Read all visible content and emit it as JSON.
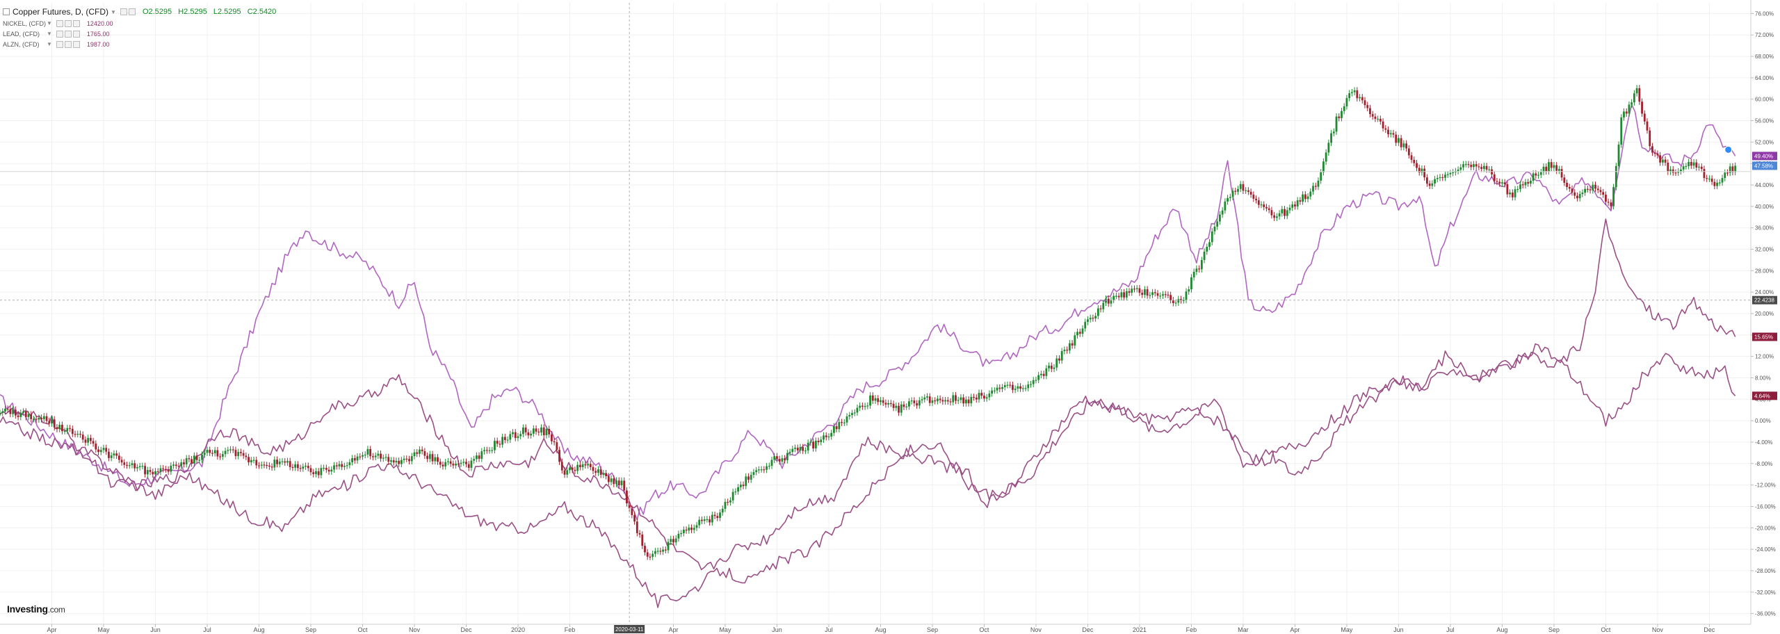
{
  "legend": {
    "main": {
      "name": "Copper Futures, D, (CFD)",
      "o": "O2.5295",
      "h": "H2.5295",
      "l": "L2.5295",
      "c": "C2.5420"
    },
    "subs": [
      {
        "name": "NICKEL, (CFD)",
        "value": "12420.00",
        "color": "#8c2f6a"
      },
      {
        "name": "LEAD, (CFD)",
        "value": "1765.00",
        "color": "#8c2f6a"
      },
      {
        "name": "ALZN, (CFD)",
        "value": "1987.00",
        "color": "#8c2f6a"
      }
    ]
  },
  "logo": {
    "brand": "Investing",
    "suffix": ".com"
  },
  "colors": {
    "purple_light": "#b066c0",
    "purple_dark": "#9a4f86",
    "candle_up": "#1d8a2f",
    "candle_down": "#a31f2d",
    "crosshair": "#b0b0b0"
  },
  "chart_data": {
    "type": "line",
    "title": "Copper Futures, D, (CFD)",
    "y_unit": "%",
    "ylim": [
      -38,
      78
    ],
    "y_ticks": [
      "76.00%",
      "72.00%",
      "68.00%",
      "64.00%",
      "60.00%",
      "56.00%",
      "52.00%",
      "48.00%",
      "44.00%",
      "40.00%",
      "36.00%",
      "32.00%",
      "28.00%",
      "24.00%",
      "20.00%",
      "16.00%",
      "12.00%",
      "8.00%",
      "4.00%",
      "0.00%",
      "-4.00%",
      "-8.00%",
      "-12.00%",
      "-16.00%",
      "-20.00%",
      "-24.00%",
      "-28.00%",
      "-32.00%",
      "-36.00%"
    ],
    "x_ticks": [
      {
        "label": "Apr",
        "x": 0.3
      },
      {
        "label": "May",
        "x": 1.3
      },
      {
        "label": "Jun",
        "x": 2.3
      },
      {
        "label": "Jul",
        "x": 3.3
      },
      {
        "label": "Aug",
        "x": 4.3
      },
      {
        "label": "Sep",
        "x": 5.3
      },
      {
        "label": "Oct",
        "x": 6.3
      },
      {
        "label": "Nov",
        "x": 7.3
      },
      {
        "label": "Dec",
        "x": 8.3
      },
      {
        "label": "2020",
        "x": 9.3
      },
      {
        "label": "Feb",
        "x": 10.3
      },
      {
        "label": "Apr",
        "x": 12.3
      },
      {
        "label": "May",
        "x": 13.3
      },
      {
        "label": "Jun",
        "x": 14.3
      },
      {
        "label": "Jul",
        "x": 15.3
      },
      {
        "label": "Aug",
        "x": 16.3
      },
      {
        "label": "Sep",
        "x": 17.3
      },
      {
        "label": "Oct",
        "x": 18.3
      },
      {
        "label": "Nov",
        "x": 19.3
      },
      {
        "label": "Dec",
        "x": 20.3
      },
      {
        "label": "2021",
        "x": 21.3
      },
      {
        "label": "Feb",
        "x": 22.3
      },
      {
        "label": "Mar",
        "x": 23.3
      },
      {
        "label": "Apr",
        "x": 24.3
      },
      {
        "label": "May",
        "x": 25.3
      },
      {
        "label": "Jun",
        "x": 26.3
      },
      {
        "label": "Jul",
        "x": 27.3
      },
      {
        "label": "Aug",
        "x": 28.3
      },
      {
        "label": "Sep",
        "x": 29.3
      },
      {
        "label": "Oct",
        "x": 30.3
      },
      {
        "label": "Nov",
        "x": 31.3
      },
      {
        "label": "Dec",
        "x": 32.3
      }
    ],
    "x_range": [
      -0.7,
      33.1
    ],
    "crosshair": {
      "x": 11.45,
      "y": 22.5,
      "x_label": "2020-03-11",
      "y_label": "22.4238"
    },
    "hline": {
      "y": 46.5
    },
    "price_tags": [
      {
        "label": "49.40%",
        "y": 49.4,
        "color": "#8e3aa6"
      },
      {
        "label": "47.58%",
        "y": 47.58,
        "color": "#4f86d6"
      },
      {
        "label": "15.65%",
        "y": 15.65,
        "color": "#8c1d3d"
      },
      {
        "label": "4.64%",
        "y": 4.64,
        "color": "#8c1d3d"
      }
    ],
    "series": [
      {
        "name": "NICKEL, (CFD)",
        "color": "#b066c0",
        "x": [
          -0.7,
          0.5,
          1.2,
          1.8,
          2.5,
          3.2,
          3.6,
          4.3,
          4.8,
          5.2,
          5.4,
          5.8,
          6.3,
          6.5,
          7.0,
          7.3,
          7.6,
          8.0,
          8.4,
          8.8,
          9.2,
          9.7,
          10.2,
          10.8,
          11.3,
          11.6,
          11.9,
          12.3,
          12.8,
          13.3,
          13.8,
          14.4,
          14.9,
          15.4,
          15.9,
          16.4,
          16.9,
          17.4,
          17.9,
          18.4,
          18.8,
          19.3,
          19.8,
          20.3,
          20.8,
          21.2,
          21.6,
          22.0,
          22.4,
          22.8,
          23.0,
          23.2,
          23.4,
          23.8,
          24.3,
          24.8,
          25.3,
          25.8,
          26.3,
          26.7,
          27.0,
          27.3,
          27.8,
          28.4,
          28.9,
          29.4,
          29.9,
          30.2,
          30.4,
          30.6,
          30.8,
          31.0,
          31.3,
          31.7,
          32.0,
          32.3,
          32.5,
          32.8
        ],
        "y": [
          4,
          -4,
          -8,
          -12,
          -10,
          -8,
          3,
          20,
          30,
          36,
          34,
          32,
          30,
          28,
          22,
          26,
          14,
          8,
          -2,
          4,
          6,
          2,
          -6,
          -8,
          -12,
          -18,
          -14,
          -12,
          -14,
          -8,
          -2,
          -8,
          -4,
          0,
          6,
          8,
          12,
          18,
          14,
          10,
          12,
          16,
          18,
          22,
          24,
          26,
          34,
          40,
          30,
          38,
          48,
          36,
          22,
          20,
          24,
          34,
          40,
          42,
          40,
          42,
          28,
          36,
          46,
          44,
          46,
          40,
          45,
          42,
          40,
          50,
          60,
          52,
          50,
          48,
          50,
          56,
          52,
          49.4
        ]
      },
      {
        "name": "LEAD, (CFD)",
        "color": "#9a4f86",
        "x": [
          -0.7,
          0.3,
          0.9,
          1.5,
          2.1,
          2.8,
          3.5,
          3.8,
          4.4,
          5.0,
          5.6,
          6.3,
          7.0,
          7.6,
          8.3,
          8.9,
          9.5,
          9.8,
          10.4,
          11.0,
          11.6,
          12.3,
          12.9,
          13.5,
          14.1,
          14.7,
          15.4,
          16.0,
          16.7,
          17.4,
          18.0,
          18.4,
          18.9,
          19.5,
          20.2,
          20.9,
          21.6,
          22.3,
          22.8,
          23.2,
          23.6,
          24.0,
          24.5,
          25.0,
          25.5,
          26.2,
          26.7,
          27.2,
          27.8,
          28.4,
          29.0,
          29.5,
          30.0,
          30.3,
          30.6,
          31.0,
          31.4,
          31.8,
          32.2,
          32.6,
          32.8
        ],
        "y": [
          2,
          0,
          -6,
          -12,
          -12,
          -10,
          -2,
          -2,
          -6,
          -4,
          2,
          4,
          8,
          0,
          -10,
          -8,
          -8,
          -4,
          -10,
          -12,
          -16,
          -24,
          -28,
          -24,
          -22,
          -16,
          -14,
          -4,
          -6,
          -4,
          -12,
          -14,
          -12,
          -4,
          4,
          2,
          0,
          2,
          0,
          -4,
          -8,
          -6,
          -4,
          0,
          4,
          8,
          6,
          12,
          8,
          10,
          14,
          10,
          4,
          0,
          2,
          8,
          12,
          10,
          8,
          10,
          4.64
        ]
      },
      {
        "name": "ALZN, (CFD)",
        "color": "#9a4f86",
        "x": [
          -0.7,
          0.3,
          1.0,
          1.6,
          2.3,
          2.9,
          3.5,
          4.1,
          4.8,
          5.4,
          6.0,
          6.6,
          7.2,
          7.8,
          8.4,
          9.0,
          9.6,
          10.2,
          10.8,
          11.4,
          12.0,
          12.6,
          13.2,
          13.8,
          14.4,
          15.0,
          15.6,
          16.2,
          16.8,
          17.4,
          18.0,
          18.3,
          18.6,
          19.2,
          19.8,
          20.4,
          21.0,
          21.6,
          22.2,
          22.8,
          23.3,
          23.8,
          24.3,
          24.8,
          25.3,
          25.8,
          26.3,
          26.8,
          27.3,
          27.8,
          28.3,
          28.8,
          29.3,
          29.8,
          30.1,
          30.3,
          30.5,
          30.8,
          31.2,
          31.6,
          32.0,
          32.4,
          32.8
        ],
        "y": [
          0,
          -4,
          -6,
          -10,
          -14,
          -10,
          -14,
          -18,
          -20,
          -14,
          -12,
          -8,
          -10,
          -14,
          -18,
          -20,
          -20,
          -16,
          -20,
          -26,
          -34,
          -32,
          -28,
          -30,
          -26,
          -24,
          -18,
          -12,
          -6,
          -8,
          -10,
          -16,
          -14,
          -10,
          -2,
          4,
          2,
          -2,
          0,
          4,
          -8,
          -6,
          -10,
          -6,
          0,
          4,
          8,
          6,
          10,
          8,
          10,
          12,
          10,
          14,
          24,
          38,
          30,
          24,
          20,
          18,
          22,
          18,
          15.65
        ]
      },
      {
        "name": "Copper Futures, D, (CFD)",
        "color": "#1d8a2f",
        "x": [
          -0.7,
          0.2,
          1.0,
          1.7,
          2.3,
          2.8,
          3.3,
          3.8,
          4.3,
          4.9,
          5.4,
          5.9,
          6.4,
          6.9,
          7.4,
          7.9,
          8.4,
          8.9,
          9.4,
          9.9,
          10.2,
          10.5,
          10.9,
          11.3,
          11.5,
          11.8,
          12.1,
          12.6,
          13.1,
          13.6,
          14.1,
          14.6,
          15.1,
          15.6,
          16.1,
          16.6,
          17.1,
          17.6,
          18.1,
          18.6,
          19.1,
          19.6,
          20.1,
          20.6,
          21.1,
          21.6,
          22.1,
          22.6,
          22.9,
          23.2,
          23.5,
          23.9,
          24.3,
          24.7,
          25.1,
          25.4,
          25.7,
          26.1,
          26.5,
          26.9,
          27.3,
          27.7,
          28.1,
          28.5,
          28.9,
          29.3,
          29.7,
          30.1,
          30.4,
          30.6,
          30.9,
          31.2,
          31.6,
          32.0,
          32.4,
          32.8
        ],
        "y": [
          2,
          0,
          -4,
          -8,
          -10,
          -8,
          -6,
          -6,
          -8,
          -8,
          -10,
          -8,
          -6,
          -8,
          -6,
          -8,
          -8,
          -4,
          -2,
          -2,
          -10,
          -8,
          -10,
          -12,
          -18,
          -26,
          -24,
          -20,
          -18,
          -12,
          -8,
          -6,
          -4,
          0,
          4,
          2,
          4,
          4,
          4,
          6,
          6,
          10,
          16,
          22,
          24,
          24,
          22,
          32,
          40,
          44,
          42,
          38,
          40,
          44,
          56,
          62,
          58,
          54,
          50,
          44,
          46,
          48,
          46,
          42,
          46,
          48,
          42,
          44,
          40,
          56,
          62,
          50,
          46,
          48,
          44,
          47.58
        ]
      }
    ]
  }
}
